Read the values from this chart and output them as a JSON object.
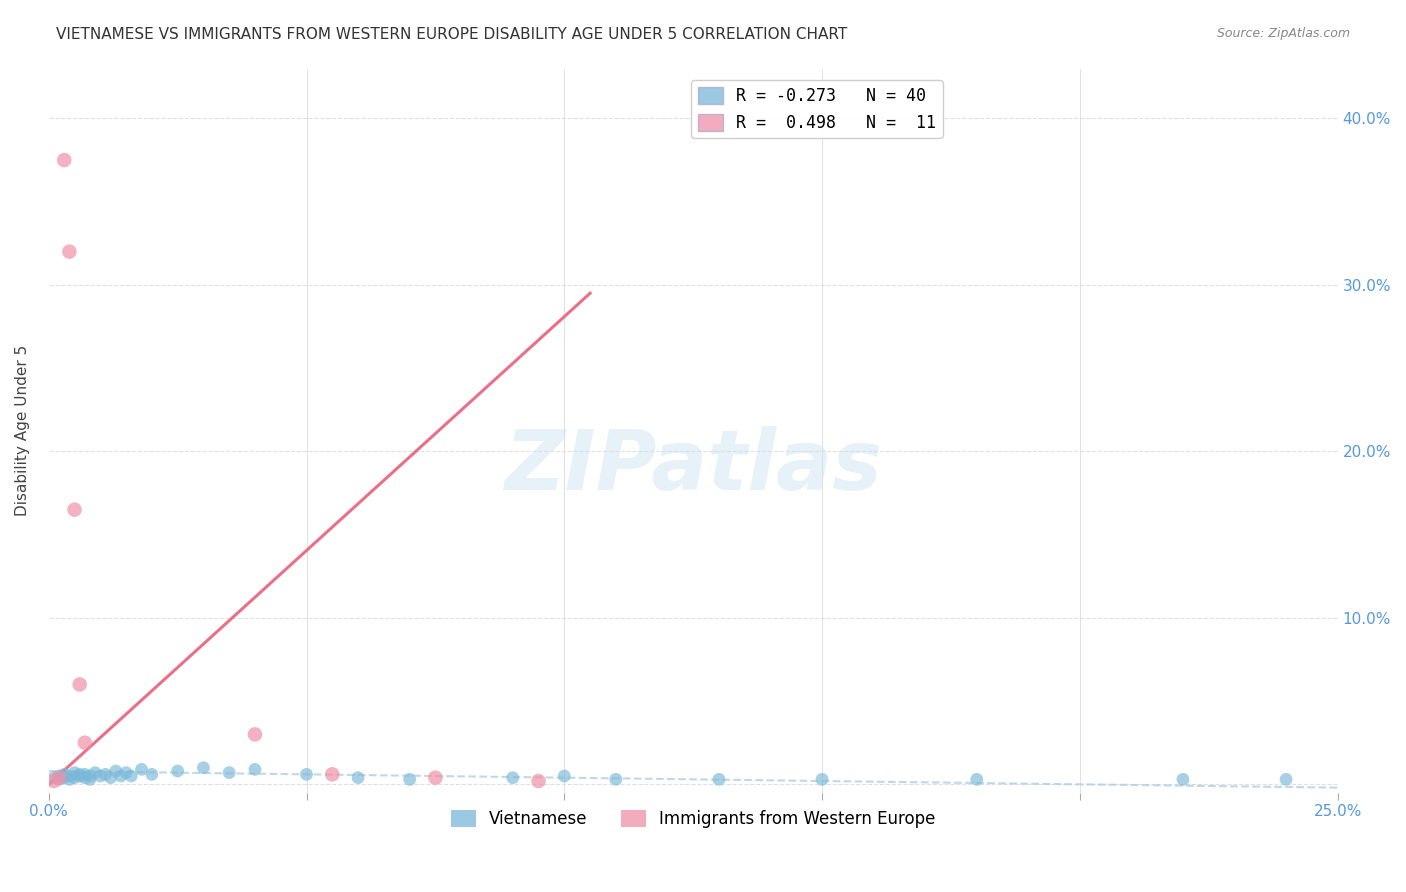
{
  "title": "VIETNAMESE VS IMMIGRANTS FROM WESTERN EUROPE DISABILITY AGE UNDER 5 CORRELATION CHART",
  "source": "Source: ZipAtlas.com",
  "ylabel": "Disability Age Under 5",
  "xlim": [
    0.0,
    0.25
  ],
  "ylim": [
    -0.005,
    0.43
  ],
  "background_color": "#ffffff",
  "watermark_text": "ZIPatlas",
  "viet_color": "#7ab8d8",
  "west_eu_color": "#f090a8",
  "viet_trend_color": "#aaccdd",
  "west_eu_trend_color": "#e8607a",
  "axis_color": "#5599dd",
  "grid_color": "#dddddd",
  "title_color": "#333333",
  "title_fontsize": 11,
  "source_fontsize": 9,
  "viet_x": [
    0.001,
    0.002,
    0.002,
    0.003,
    0.003,
    0.004,
    0.004,
    0.005,
    0.005,
    0.006,
    0.006,
    0.007,
    0.007,
    0.008,
    0.008,
    0.009,
    0.01,
    0.011,
    0.012,
    0.013,
    0.014,
    0.015,
    0.016,
    0.018,
    0.02,
    0.025,
    0.03,
    0.035,
    0.04,
    0.05,
    0.06,
    0.07,
    0.09,
    0.1,
    0.11,
    0.13,
    0.15,
    0.18,
    0.22,
    0.24
  ],
  "viet_y": [
    0.004,
    0.003,
    0.005,
    0.006,
    0.004,
    0.005,
    0.003,
    0.007,
    0.004,
    0.006,
    0.005,
    0.004,
    0.006,
    0.005,
    0.003,
    0.007,
    0.005,
    0.006,
    0.004,
    0.008,
    0.005,
    0.007,
    0.005,
    0.009,
    0.006,
    0.008,
    0.01,
    0.007,
    0.009,
    0.006,
    0.004,
    0.003,
    0.004,
    0.005,
    0.003,
    0.003,
    0.003,
    0.003,
    0.003,
    0.003
  ],
  "west_eu_x": [
    0.001,
    0.002,
    0.003,
    0.004,
    0.005,
    0.006,
    0.007,
    0.04,
    0.055,
    0.075,
    0.095
  ],
  "west_eu_y": [
    0.002,
    0.004,
    0.375,
    0.32,
    0.165,
    0.06,
    0.025,
    0.03,
    0.006,
    0.004,
    0.002
  ],
  "viet_trend_x": [
    0.0,
    0.25
  ],
  "viet_trend_y": [
    0.008,
    -0.002
  ],
  "west_eu_trend_x": [
    0.0,
    0.105
  ],
  "west_eu_trend_y": [
    0.0,
    0.295
  ],
  "xtick_positions": [
    0.0,
    0.05,
    0.1,
    0.15,
    0.2,
    0.25
  ],
  "ytick_positions": [
    0.0,
    0.1,
    0.2,
    0.3,
    0.4
  ],
  "ytick_labels_right": [
    "",
    "10.0%",
    "20.0%",
    "30.0%",
    "40.0%"
  ],
  "legend_label1": "R = -0.273   N = 40",
  "legend_label2": "R =  0.498   N =  11",
  "bottom_legend_label1": "Vietnamese",
  "bottom_legend_label2": "Immigrants from Western Europe"
}
